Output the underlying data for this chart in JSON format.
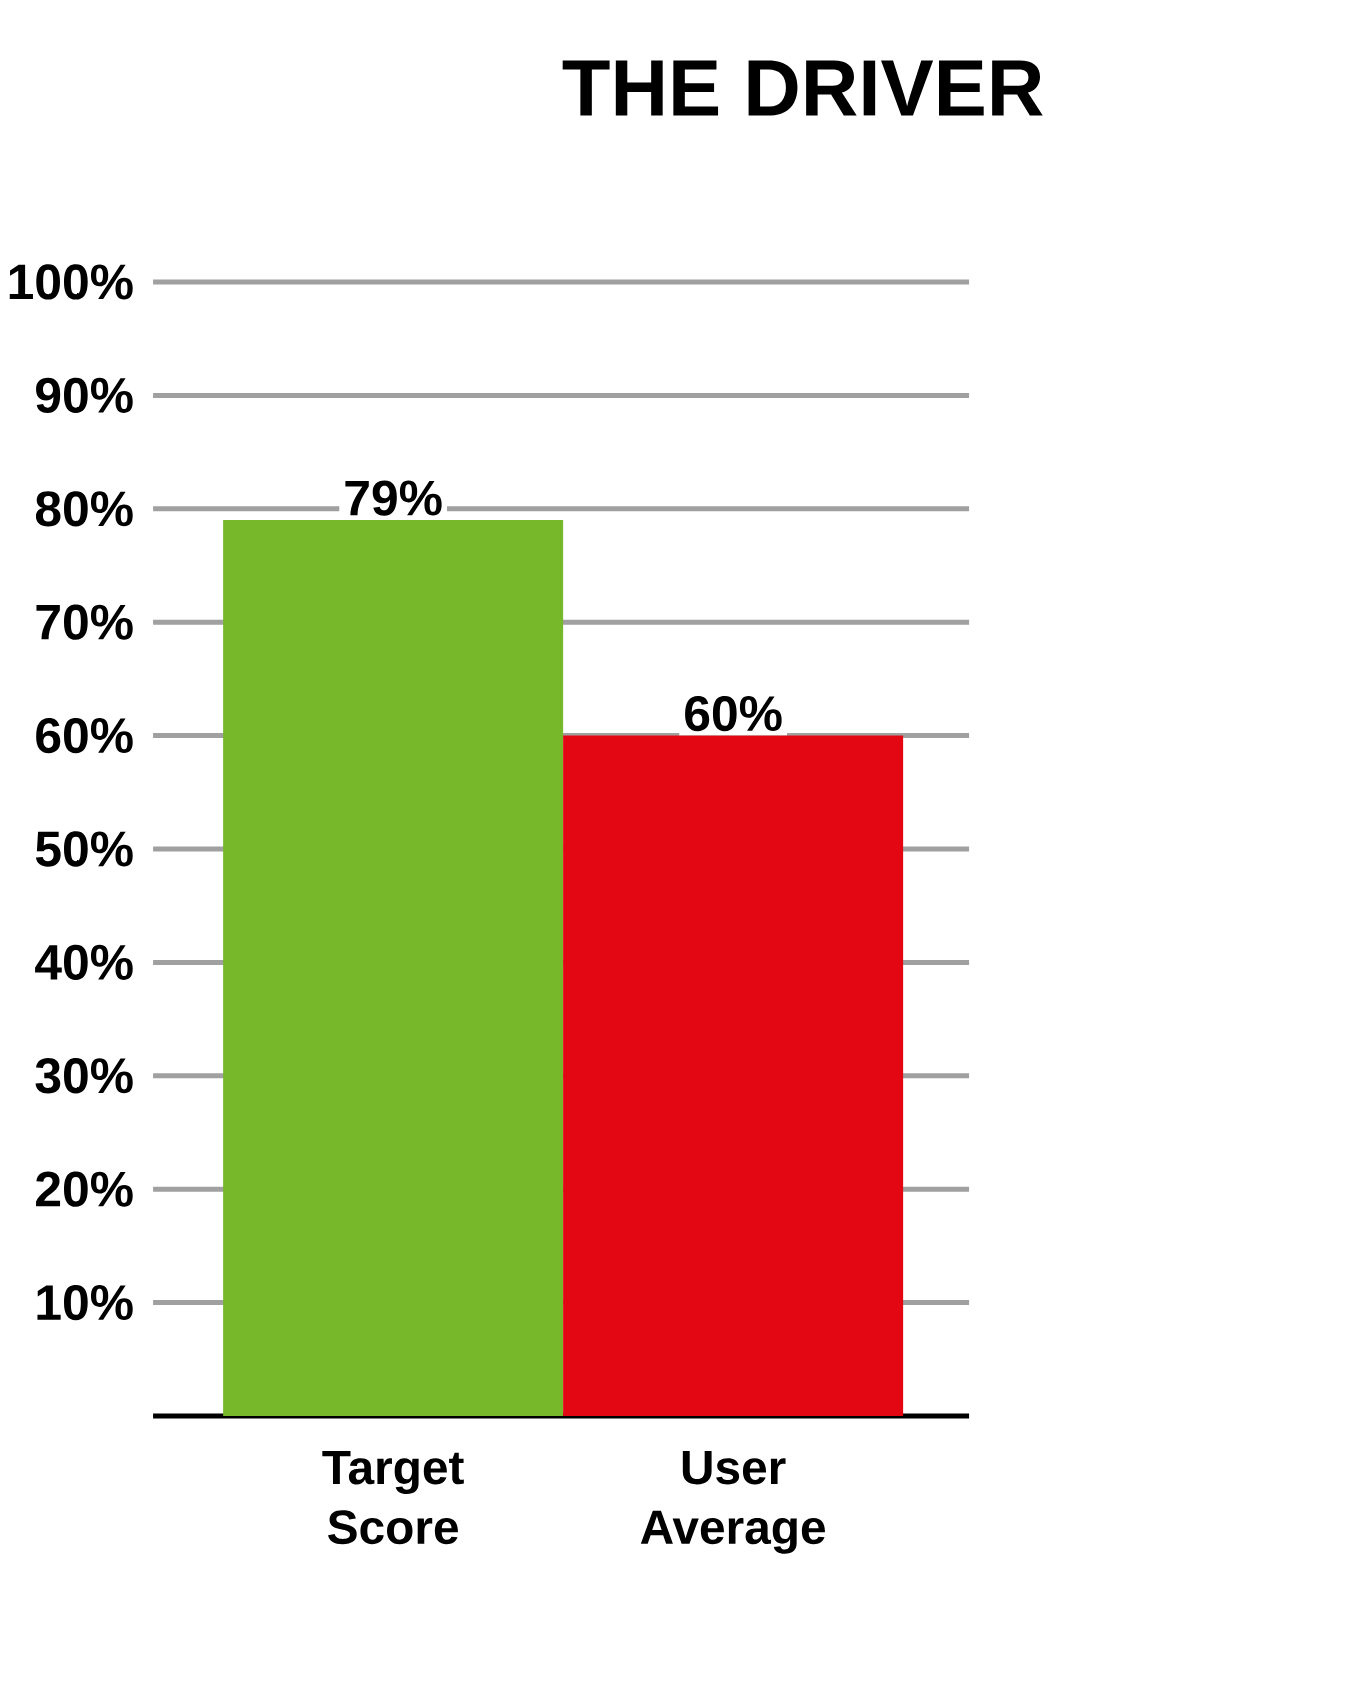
{
  "chart_data": {
    "type": "bar",
    "title": "THE DRIVER",
    "categories": [
      "Target Score",
      "User Average"
    ],
    "values": [
      79,
      60
    ],
    "colors": [
      "#76b82a",
      "#e30613"
    ],
    "value_labels": [
      "79%",
      "60%"
    ],
    "ylim": [
      0,
      100
    ],
    "yticks": [
      {
        "value": 10,
        "label": "10%"
      },
      {
        "value": 20,
        "label": "20%"
      },
      {
        "value": 30,
        "label": "30%"
      },
      {
        "value": 40,
        "label": "40%"
      },
      {
        "value": 50,
        "label": "50%"
      },
      {
        "value": 60,
        "label": "60%"
      },
      {
        "value": 70,
        "label": "70%"
      },
      {
        "value": 80,
        "label": "80%"
      },
      {
        "value": 90,
        "label": "90%"
      },
      {
        "value": 100,
        "label": "100%"
      }
    ],
    "grid": "y"
  }
}
